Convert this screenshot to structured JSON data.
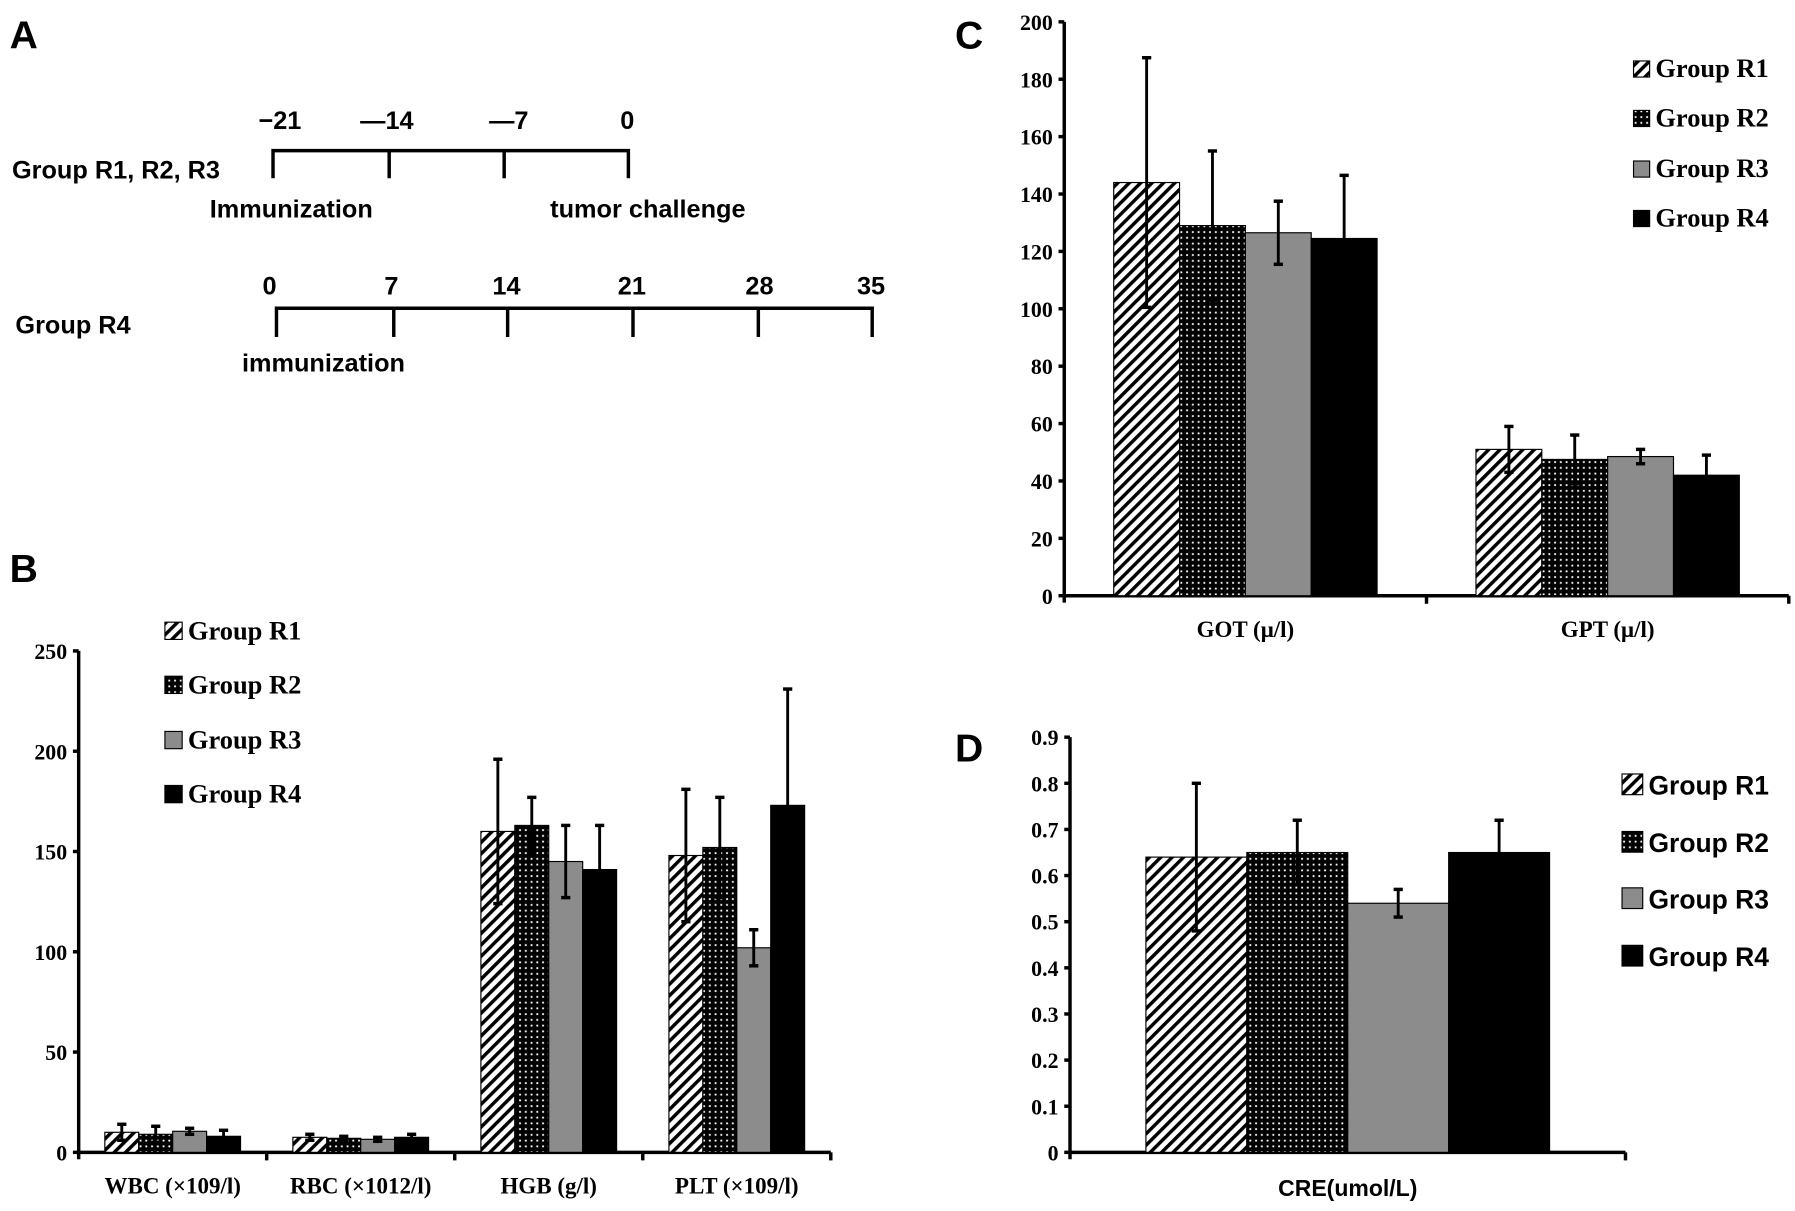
{
  "panel_a": {
    "label": "A",
    "timeline_1": {
      "group": "Group R1, R2, R3",
      "ticks": [
        "−21",
        "—14",
        "—7",
        "0"
      ],
      "events": [
        "Immunization",
        "tumor challenge"
      ]
    },
    "timeline_2": {
      "group": "Group R4",
      "ticks": [
        "0",
        "7",
        "14",
        "21",
        "28",
        "35"
      ],
      "events": [
        "immunization"
      ]
    }
  },
  "legend": [
    "Group R1",
    "Group R2",
    "Group R3",
    "Group R4"
  ],
  "series_style": [
    {
      "fill": "hatch",
      "color": "#000000"
    },
    {
      "fill": "dots",
      "color": "#000000"
    },
    {
      "fill": "solid",
      "color": "#8c8c8c"
    },
    {
      "fill": "solid",
      "color": "#000000"
    }
  ],
  "chart_data": [
    {
      "panel": "B",
      "type": "bar",
      "categories": [
        "WBC (×109/l)",
        "RBC (×1012/l)",
        "HGB (g/l)",
        "PLT (×109/l)"
      ],
      "ylim": [
        0,
        250
      ],
      "yticks": [
        "0",
        "50",
        "100",
        "150",
        "200",
        "250"
      ],
      "legend_position": "top-left",
      "grid": false,
      "series": [
        {
          "name": "Group R1",
          "values": [
            10,
            7.5,
            160,
            148
          ],
          "errors": [
            4,
            1.5,
            36,
            33
          ]
        },
        {
          "name": "Group R2",
          "values": [
            9,
            7,
            163,
            152
          ],
          "errors": [
            4,
            1,
            14,
            25
          ]
        },
        {
          "name": "Group R3",
          "values": [
            10.5,
            6.5,
            145,
            102
          ],
          "errors": [
            1.5,
            1,
            18,
            9
          ]
        },
        {
          "name": "Group R4",
          "values": [
            8,
            7.5,
            141,
            173
          ],
          "errors": [
            3,
            1.5,
            22,
            58
          ]
        }
      ]
    },
    {
      "panel": "C",
      "type": "bar",
      "categories": [
        "GOT (μ/l)",
        "GPT (μ/l)"
      ],
      "ylim": [
        0,
        200
      ],
      "yticks": [
        "0",
        "20",
        "40",
        "60",
        "80",
        "100",
        "120",
        "140",
        "160",
        "180",
        "200"
      ],
      "legend_position": "top-right",
      "grid": false,
      "series": [
        {
          "name": "Group R1",
          "values": [
            144,
            51
          ],
          "errors": [
            43.5,
            8
          ]
        },
        {
          "name": "Group R2",
          "values": [
            129,
            47.5
          ],
          "errors": [
            26,
            8.5
          ]
        },
        {
          "name": "Group R3",
          "values": [
            126.5,
            48.5
          ],
          "errors": [
            11,
            2.5
          ]
        },
        {
          "name": "Group R4",
          "values": [
            124.5,
            42
          ],
          "errors": [
            22,
            7
          ]
        }
      ]
    },
    {
      "panel": "D",
      "type": "bar",
      "categories": [
        "CRE(umol/L)"
      ],
      "ylim": [
        0,
        0.9
      ],
      "yticks": [
        "0",
        "0.1",
        "0.2",
        "0.3",
        "0.4",
        "0.5",
        "0.6",
        "0.7",
        "0.8",
        "0.9"
      ],
      "legend_position": "right",
      "grid": false,
      "series": [
        {
          "name": "Group R1",
          "values": [
            0.64
          ],
          "errors": [
            0.16
          ]
        },
        {
          "name": "Group R2",
          "values": [
            0.65
          ],
          "errors": [
            0.07
          ]
        },
        {
          "name": "Group R3",
          "values": [
            0.54
          ],
          "errors": [
            0.03
          ]
        },
        {
          "name": "Group R4",
          "values": [
            0.65
          ],
          "errors": [
            0.07
          ]
        }
      ]
    }
  ]
}
